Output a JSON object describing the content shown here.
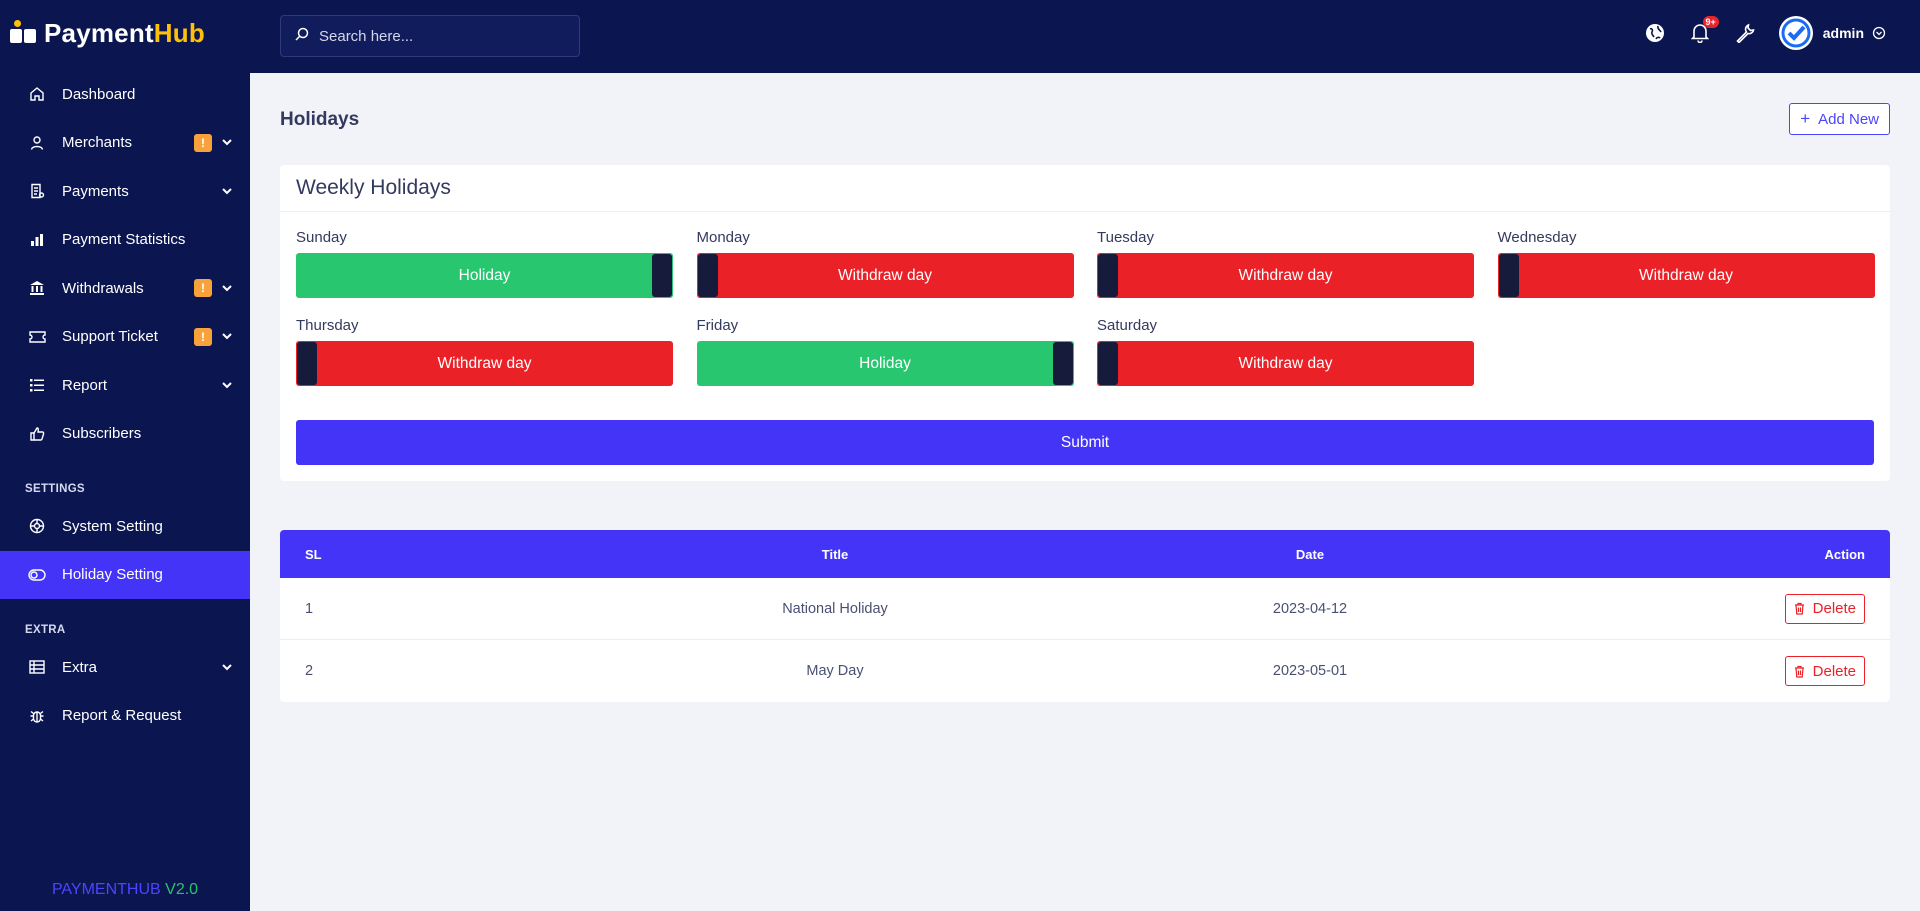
{
  "brand": {
    "name_part1": "Payment",
    "name_part2": "Hub"
  },
  "sidebar": {
    "items": [
      {
        "label": "Dashboard",
        "icon": "home-icon"
      },
      {
        "label": "Merchants",
        "icon": "user-icon",
        "badge": "!"
      },
      {
        "label": "Payments",
        "icon": "receipt-icon"
      },
      {
        "label": "Payment Statistics",
        "icon": "bar-chart-icon"
      },
      {
        "label": "Withdrawals",
        "icon": "bank-icon",
        "badge": "!"
      },
      {
        "label": "Support Ticket",
        "icon": "ticket-icon",
        "badge": "!"
      },
      {
        "label": "Report",
        "icon": "list-icon"
      },
      {
        "label": "Subscribers",
        "icon": "thumbs-up-icon"
      }
    ],
    "settings_heading": "SETTINGS",
    "settings_items": [
      {
        "label": "System Setting",
        "icon": "settings-icon"
      },
      {
        "label": "Holiday Setting",
        "icon": "toggle-icon",
        "active": true
      }
    ],
    "extra_heading": "EXTRA",
    "extra_items": [
      {
        "label": "Extra",
        "icon": "table-icon"
      },
      {
        "label": "Report & Request",
        "icon": "bug-icon"
      }
    ],
    "footer_part1": "PAYMENTHUB",
    "footer_part2": "V2.0"
  },
  "topbar": {
    "search_placeholder": "Search here...",
    "notification_count": "9+",
    "user_name": "admin"
  },
  "page": {
    "title": "Holidays",
    "add_button": "Add New"
  },
  "weekly": {
    "heading": "Weekly Holidays",
    "days": [
      {
        "name": "Sunday",
        "state": "Holiday",
        "on": true
      },
      {
        "name": "Monday",
        "state": "Withdraw day",
        "on": false
      },
      {
        "name": "Tuesday",
        "state": "Withdraw day",
        "on": false
      },
      {
        "name": "Wednesday",
        "state": "Withdraw day",
        "on": false
      },
      {
        "name": "Thursday",
        "state": "Withdraw day",
        "on": false
      },
      {
        "name": "Friday",
        "state": "Holiday",
        "on": true
      },
      {
        "name": "Saturday",
        "state": "Withdraw day",
        "on": false
      }
    ],
    "submit": "Submit"
  },
  "table": {
    "headers": {
      "sl": "SL",
      "title": "Title",
      "date": "Date",
      "action": "Action"
    },
    "rows": [
      {
        "sl": "1",
        "title": "National Holiday",
        "date": "2023-04-12",
        "action": "Delete"
      },
      {
        "sl": "2",
        "title": "May Day",
        "date": "2023-05-01",
        "action": "Delete"
      }
    ]
  },
  "colors": {
    "sidebar_bg": "#0b1650",
    "accent": "#4434f7",
    "holiday_green": "#28c66f",
    "withdraw_red": "#ea2127",
    "brand_yellow": "#ffc107"
  }
}
